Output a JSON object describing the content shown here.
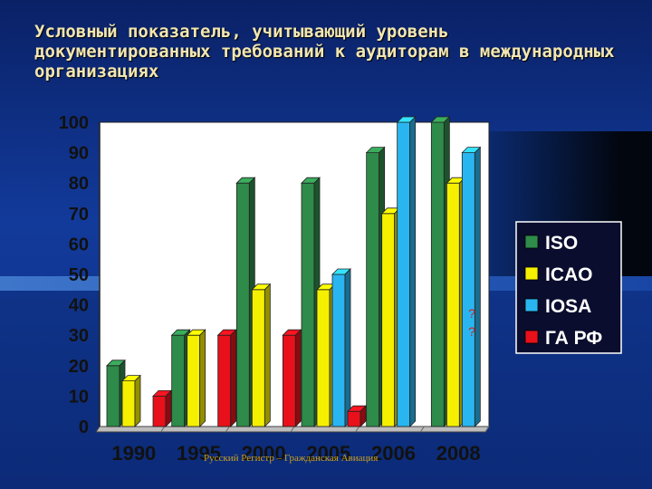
{
  "slide": {
    "title": "Условный показатель, учитывающий уровень документированных требований к аудиторам в международных организациях",
    "footer": "Русский Регистр – Гражданская Авиация"
  },
  "chart_data": {
    "type": "bar",
    "categories": [
      "1990",
      "1995",
      "2000",
      "2005",
      "2006",
      "2008"
    ],
    "ylim": [
      0,
      100
    ],
    "yticks": [
      0,
      10,
      20,
      30,
      40,
      50,
      60,
      70,
      80,
      90,
      100
    ],
    "series": [
      {
        "name": "ISO",
        "color": "#2e8b4a",
        "values": [
          20,
          30,
          80,
          80,
          90,
          100
        ]
      },
      {
        "name": "ICAO",
        "color": "#f5f000",
        "values": [
          15,
          30,
          45,
          45,
          70,
          80
        ]
      },
      {
        "name": "IOSA",
        "color": "#29b6f0",
        "values": [
          null,
          null,
          null,
          50,
          100,
          90
        ]
      },
      {
        "name": "ГА РФ",
        "color": "#e8101a",
        "values": [
          10,
          30,
          30,
          5,
          null,
          null
        ]
      }
    ],
    "annotations": [
      {
        "text": "?",
        "category": "2008"
      },
      {
        "text": "?",
        "category": "2008"
      }
    ],
    "grid": false,
    "legend": "right"
  }
}
